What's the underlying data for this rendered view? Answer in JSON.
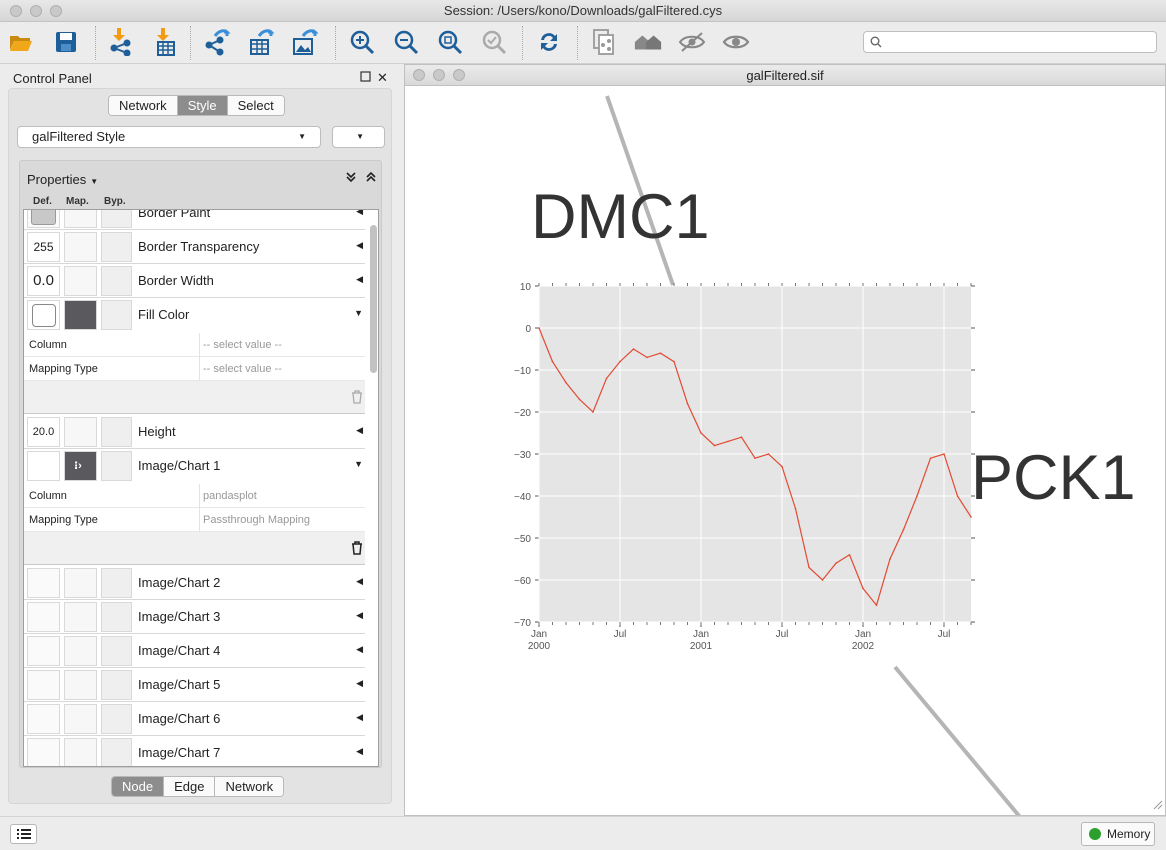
{
  "window": {
    "title": "Session: /Users/kono/Downloads/galFiltered.cys"
  },
  "search": {
    "placeholder": "",
    "value": ""
  },
  "toolbar": {
    "icons": [
      "open-folder-icon",
      "save-icon",
      "import-network-icon",
      "import-table-icon",
      "export-network-icon",
      "export-table-icon",
      "export-image-icon",
      "zoom-in-icon",
      "zoom-out-icon",
      "zoom-fit-icon",
      "zoom-selected-icon",
      "refresh-icon",
      "new-network-icon",
      "home-icon",
      "hide-icon",
      "show-icon"
    ]
  },
  "control_panel": {
    "title": "Control Panel",
    "top_tabs": [
      "Network",
      "Style",
      "Select"
    ],
    "active_top_tab": "Style",
    "style_selector": "galFiltered Style",
    "properties_label": "Properties",
    "column_headers": [
      "Def.",
      "Map.",
      "Byp."
    ],
    "rows": [
      {
        "label": "Border Paint",
        "def": ""
      },
      {
        "label": "Border Transparency",
        "def": "255"
      },
      {
        "label": "Border Width",
        "def": "0.0"
      },
      {
        "label": "Fill Color",
        "def": ""
      },
      {
        "label": "Height",
        "def": "20.0"
      },
      {
        "label": "Image/Chart 1",
        "def": ""
      },
      {
        "label": "Image/Chart 2",
        "def": ""
      },
      {
        "label": "Image/Chart 3",
        "def": ""
      },
      {
        "label": "Image/Chart 4",
        "def": ""
      },
      {
        "label": "Image/Chart 5",
        "def": ""
      },
      {
        "label": "Image/Chart 6",
        "def": ""
      },
      {
        "label": "Image/Chart 7",
        "def": ""
      }
    ],
    "fill_color_mapping": {
      "column_key": "Column",
      "column_value": "-- select value --",
      "type_key": "Mapping Type",
      "type_value": "-- select value --"
    },
    "chart1_mapping": {
      "column_key": "Column",
      "column_value": "pandasplot",
      "type_key": "Mapping Type",
      "type_value": "Passthrough Mapping"
    },
    "bottom_tabs": [
      "Node",
      "Edge",
      "Network"
    ],
    "active_bottom_tab": "Node"
  },
  "network_window": {
    "title": "galFiltered.sif",
    "nodes": [
      "DMC1",
      "PCK1"
    ]
  },
  "status_bar": {
    "memory_label": "Memory"
  },
  "chart_data": {
    "type": "line",
    "title": "",
    "xlabel": "",
    "ylabel": "",
    "ylim": [
      -70,
      10
    ],
    "yticks": [
      "10",
      "0",
      "−10",
      "−20",
      "−30",
      "−40",
      "−50",
      "−60",
      "−70"
    ],
    "xticks": [
      {
        "major": "Jan",
        "minor": "2000"
      },
      {
        "major": "Jul",
        "minor": ""
      },
      {
        "major": "Jan",
        "minor": "2001"
      },
      {
        "major": "Jul",
        "minor": ""
      },
      {
        "major": "Jan",
        "minor": "2002"
      },
      {
        "major": "Jul",
        "minor": ""
      }
    ],
    "x": [
      "2000-01",
      "2000-02",
      "2000-03",
      "2000-04",
      "2000-05",
      "2000-06",
      "2000-07",
      "2000-08",
      "2000-09",
      "2000-10",
      "2000-11",
      "2000-12",
      "2001-01",
      "2001-02",
      "2001-03",
      "2001-04",
      "2001-05",
      "2001-06",
      "2001-07",
      "2001-08",
      "2001-09",
      "2001-10",
      "2001-11",
      "2001-12",
      "2002-01",
      "2002-02",
      "2002-03",
      "2002-04",
      "2002-05",
      "2002-06",
      "2002-07",
      "2002-08",
      "2002-09"
    ],
    "series": [
      {
        "color": "#e24a33",
        "values": [
          0,
          -8,
          -13,
          -17,
          -20,
          -12,
          -8,
          -5,
          -7,
          -6,
          -8,
          -18,
          -25,
          -28,
          -27,
          -26,
          -31,
          -30,
          -33,
          -43,
          -57,
          -60,
          -56,
          -54,
          -62,
          -66,
          -55,
          -48,
          -40,
          -31,
          -30,
          -40,
          -45
        ]
      }
    ],
    "grid": true,
    "background": "#e5e5e5"
  }
}
